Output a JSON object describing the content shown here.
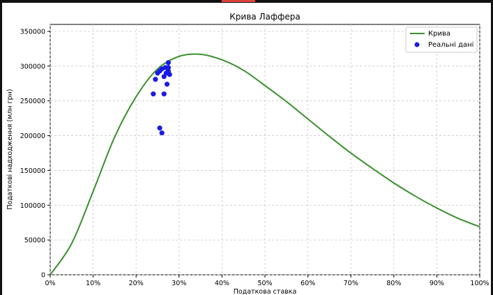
{
  "chart_data": {
    "type": "line",
    "title": "Крива Лаффера",
    "xlabel": "Податкова ставка",
    "ylabel": "Податкові надходження (млн грн)",
    "xlim": [
      0,
      1
    ],
    "ylim": [
      0,
      360000
    ],
    "x_ticks": [
      0,
      0.1,
      0.2,
      0.3,
      0.4,
      0.5,
      0.6,
      0.7,
      0.8,
      0.9,
      1.0
    ],
    "x_tick_labels": [
      "0%",
      "10%",
      "20%",
      "30%",
      "40%",
      "50%",
      "60%",
      "70%",
      "80%",
      "90%",
      "100%"
    ],
    "y_ticks": [
      0,
      50000,
      100000,
      150000,
      200000,
      250000,
      300000,
      350000
    ],
    "y_tick_labels": [
      "0",
      "50000",
      "100000",
      "150000",
      "200000",
      "250000",
      "300000",
      "350000"
    ],
    "grid": true,
    "legend_position": "top-right",
    "series": [
      {
        "name": "Крива",
        "kind": "line",
        "color": "#3a8f2e",
        "x": [
          0,
          0.05,
          0.1,
          0.15,
          0.2,
          0.25,
          0.3,
          0.35,
          0.4,
          0.45,
          0.5,
          0.55,
          0.6,
          0.65,
          0.7,
          0.75,
          0.8,
          0.85,
          0.9,
          0.95,
          1.0
        ],
        "y": [
          0,
          45000,
          120000,
          198000,
          256000,
          296000,
          314000,
          317000,
          309000,
          294000,
          272000,
          249000,
          224000,
          199000,
          175000,
          153000,
          132000,
          113000,
          96000,
          81000,
          69000
        ]
      },
      {
        "name": "Реальні дані",
        "kind": "scatter",
        "color": "#1a1ae6",
        "x": [
          0.24,
          0.245,
          0.25,
          0.255,
          0.26,
          0.265,
          0.27,
          0.275,
          0.275,
          0.278,
          0.272,
          0.268,
          0.265,
          0.255,
          0.26,
          0.275
        ],
        "y": [
          260000,
          281000,
          290000,
          293000,
          296000,
          285000,
          290000,
          298000,
          305000,
          288000,
          274000,
          298000,
          260000,
          211000,
          204000,
          293000
        ]
      }
    ]
  }
}
